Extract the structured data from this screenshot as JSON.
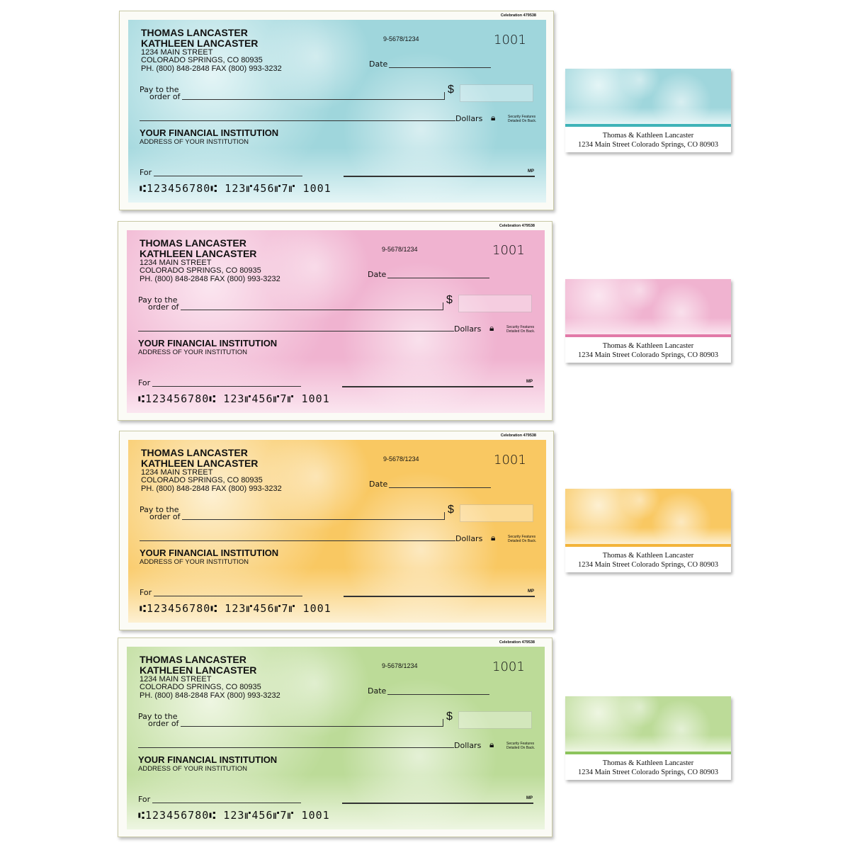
{
  "check_template": {
    "style_code": "Celebration 479538",
    "name_1": "THOMAS LANCASTER",
    "name_2": "KATHLEEN LANCASTER",
    "street": "1234 MAIN STREET",
    "city": "COLORADO SPRINGS, CO 80935",
    "phone": "PH. (800) 848-2848  FAX (800) 993-3232",
    "routing_fraction": "9-5678/1234",
    "check_number": "1001",
    "date_label": "Date",
    "pay_label_1": "Pay to the",
    "pay_label_2": "order of",
    "dollar_sign": "$",
    "dollars_label": "Dollars",
    "security_text_1": "Security Features",
    "security_text_2": "Detailed On Back.",
    "bank_name": "YOUR FINANCIAL INSTITUTION",
    "bank_address": "ADDRESS OF YOUR INSTITUTION",
    "for_label": "For",
    "mp_mark": "MP",
    "micr_line": "⑆123456780⑆ 123⑈456⑈7⑈ 1001",
    "icon": "lock-icon"
  },
  "label_template": {
    "line_1": "Thomas & Kathleen Lancaster",
    "line_2": "1234 Main Street Colorado Springs, CO 80903"
  },
  "designs": [
    {
      "color": "blue",
      "base": "#9fd6dc",
      "light": "#e4f5f6",
      "stripe": "#3fb3b8"
    },
    {
      "color": "pink",
      "base": "#f0b3d0",
      "light": "#fbe6f0",
      "stripe": "#e27aa8"
    },
    {
      "color": "orange",
      "base": "#f9c862",
      "light": "#fdf0d2",
      "stripe": "#f3b43a"
    },
    {
      "color": "green",
      "base": "#bcdb98",
      "light": "#eef6e2",
      "stripe": "#8cc45c"
    }
  ]
}
